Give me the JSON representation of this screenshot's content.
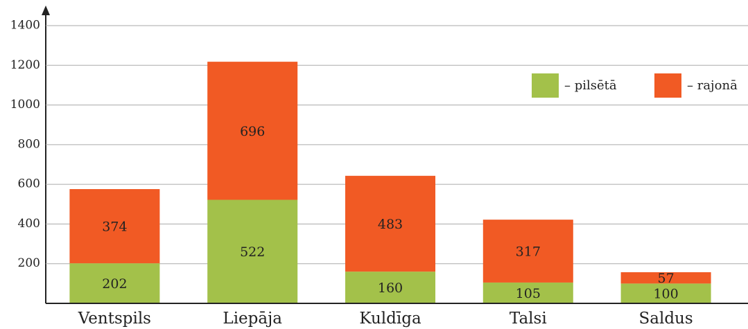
{
  "chart_data": {
    "type": "stacked_bar",
    "categories": [
      "Ventspils",
      "Liepāja",
      "Kuldīga",
      "Talsi",
      "Saldus"
    ],
    "series": [
      {
        "name": "– pilsētā",
        "color": "#a3c14a",
        "values": [
          202,
          522,
          160,
          105,
          100
        ]
      },
      {
        "name": "– rajonā",
        "color": "#f15a24",
        "values": [
          374,
          696,
          483,
          317,
          57
        ]
      }
    ],
    "ylim": [
      0,
      1400
    ],
    "yticks": [
      200,
      400,
      600,
      800,
      1000,
      1200,
      1400
    ],
    "grid": true
  }
}
